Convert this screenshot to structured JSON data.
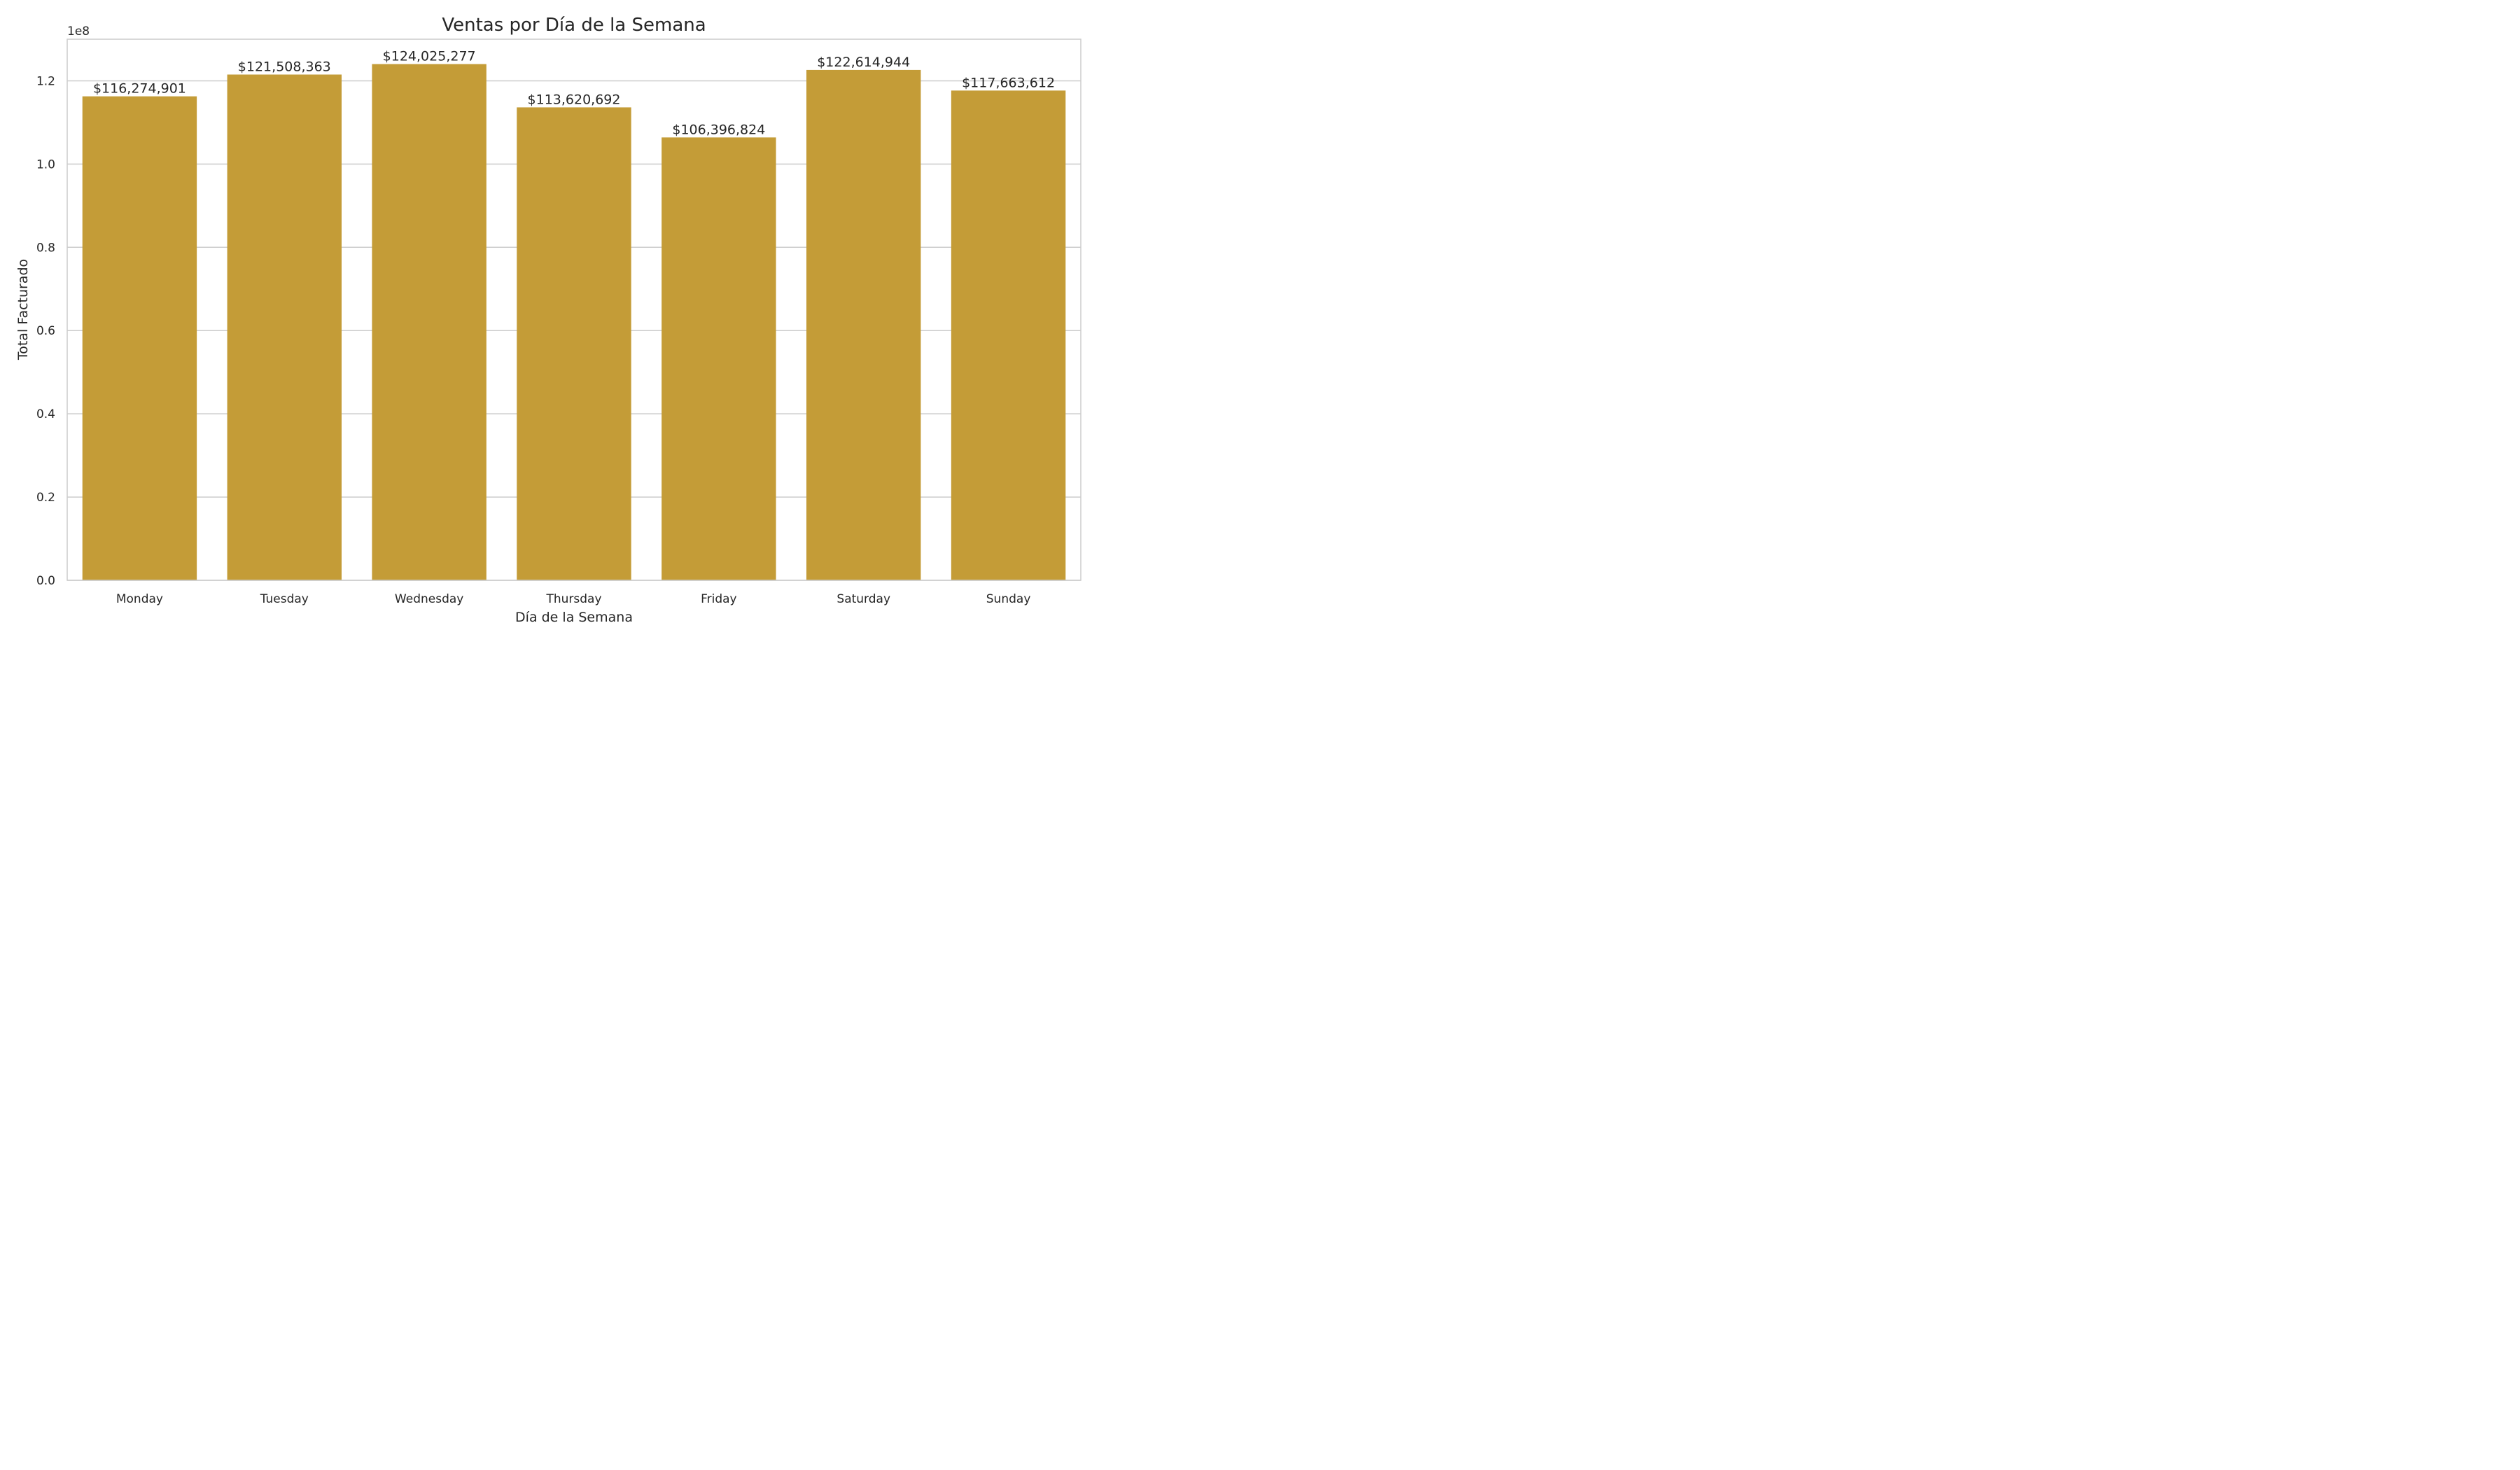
{
  "chart_data": {
    "type": "bar",
    "title": "Ventas por Día de la Semana",
    "xlabel": "Día de la Semana",
    "ylabel": "Total Facturado",
    "offset_label": "1e8",
    "categories": [
      "Monday",
      "Tuesday",
      "Wednesday",
      "Thursday",
      "Friday",
      "Saturday",
      "Sunday"
    ],
    "values": [
      116274901,
      121508363,
      124025277,
      113620692,
      106396824,
      122614944,
      117663612
    ],
    "value_labels": [
      "$116,274,901",
      "$121,508,363",
      "$124,025,277",
      "$113,620,692",
      "$106,396,824",
      "$122,614,944",
      "$117,663,612"
    ],
    "ylim": [
      0,
      130000000
    ],
    "yticks": [
      0,
      20000000,
      40000000,
      60000000,
      80000000,
      100000000,
      120000000
    ],
    "ytick_labels": [
      "0.0",
      "0.2",
      "0.4",
      "0.6",
      "0.8",
      "1.0",
      "1.2"
    ],
    "grid": true,
    "bar_color": "#c49c37",
    "grid_color": "#cccccc",
    "spine_color": "#cccccc",
    "text_color": "#262626"
  }
}
